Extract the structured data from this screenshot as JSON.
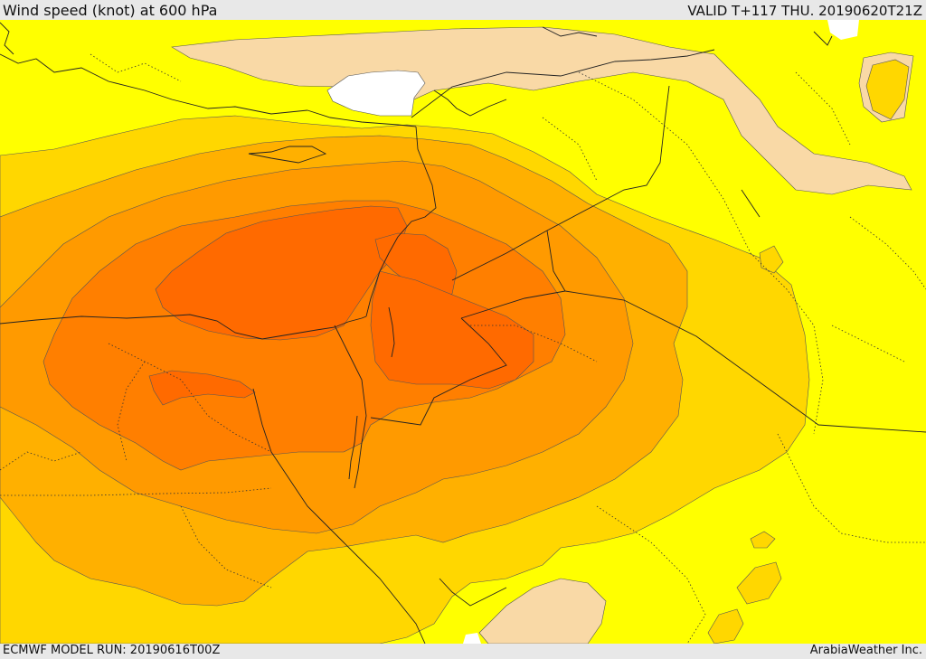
{
  "header": {
    "title": "Wind speed (knot) at 600 hPa",
    "valid_time": "VALID T+117 THU. 20190620T21Z"
  },
  "footer": {
    "model_run": "ECMWF MODEL RUN: 20190616T00Z",
    "credit": "ArabiaWeather Inc."
  },
  "colors": {
    "band_lightest": "#f9d9a6",
    "band_yellow": "#ffff00",
    "band_gold": "#ffd700",
    "band_amber": "#ffb000",
    "band_orange": "#ff9a00",
    "band_darkorange": "#ff7f00",
    "band_red_orange": "#ff6a00",
    "no_data": "#ffffff"
  }
}
